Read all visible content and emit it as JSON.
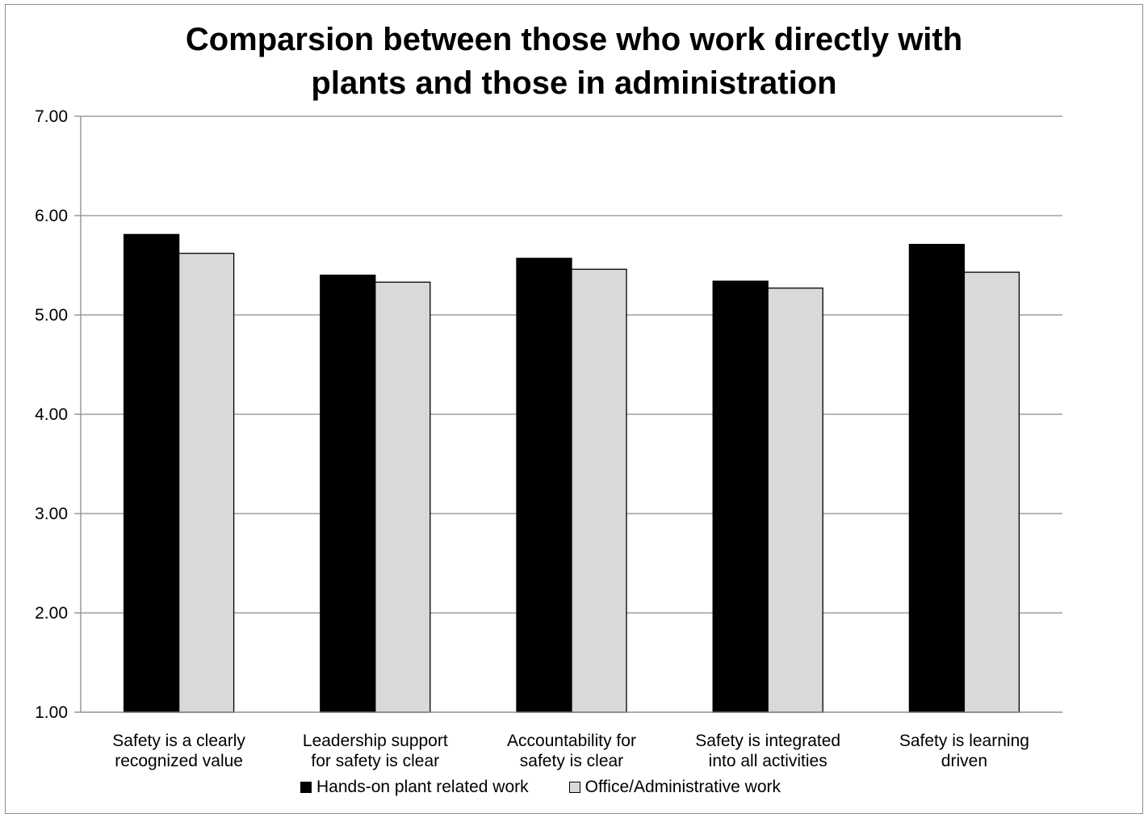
{
  "chart_data": {
    "type": "bar",
    "title": "Comparsion between  those who  work directly with\nplants and those in administration",
    "categories": [
      "Safety is a clearly\nrecognized value",
      "Leadership support\nfor safety is clear",
      "Accountability for\nsafety is clear",
      "Safety is integrated\ninto all activities",
      "Safety is learning\ndriven"
    ],
    "series": [
      {
        "name": "Hands-on plant related work",
        "color": "#000000",
        "values": [
          5.81,
          5.4,
          5.57,
          5.34,
          5.71
        ]
      },
      {
        "name": "Office/Administrative work",
        "color": "#d9d9d9",
        "values": [
          5.62,
          5.33,
          5.46,
          5.27,
          5.43
        ]
      }
    ],
    "ylim": [
      1.0,
      7.0
    ],
    "yticks": [
      "1.00",
      "2.00",
      "3.00",
      "4.00",
      "5.00",
      "6.00",
      "7.00"
    ],
    "grid": true,
    "legend_position": "bottom",
    "xlabel": "",
    "ylabel": ""
  }
}
